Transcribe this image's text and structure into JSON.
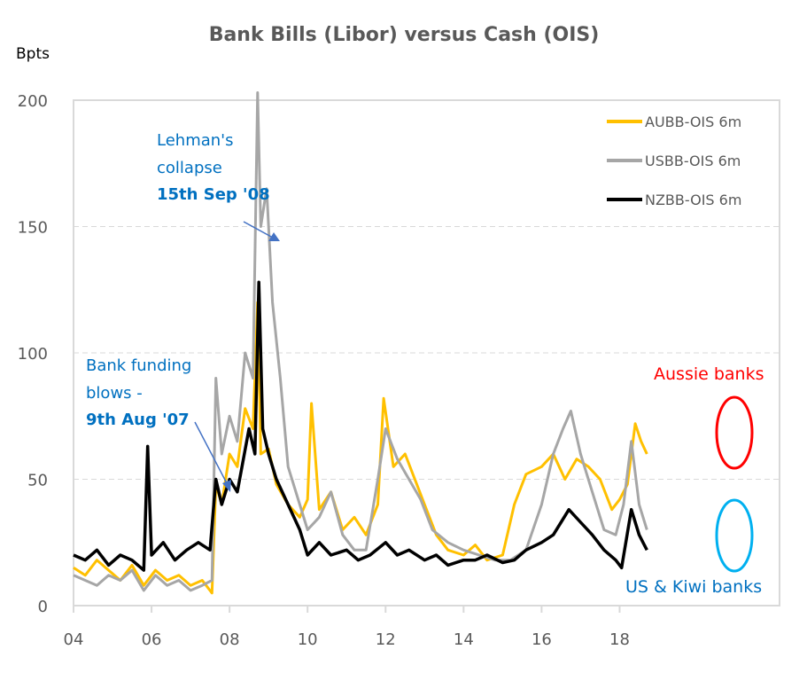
{
  "chart_data": {
    "type": "line",
    "title": "Bank Bills (Libor) versus Cash (OIS)",
    "ylabel": "Bpts",
    "xlabel": "",
    "xlim": [
      2004,
      2022.1
    ],
    "ylim": [
      0,
      200
    ],
    "x_tick_labels": [
      "04",
      "06",
      "08",
      "10",
      "12",
      "14",
      "16",
      "18"
    ],
    "x_ticks": [
      2004,
      2006,
      2008,
      2010,
      2012,
      2014,
      2016,
      2018
    ],
    "y_ticks": [
      0,
      50,
      100,
      150,
      200
    ],
    "grid": "horizontal dashed",
    "legend_position": "top-right",
    "series": [
      {
        "name": "AUBB-OIS 6m",
        "color": "#FFC000",
        "x": [
          2004,
          2004.3,
          2004.6,
          2004.9,
          2005.2,
          2005.5,
          2005.8,
          2006.1,
          2006.4,
          2006.7,
          2007,
          2007.3,
          2007.55,
          2007.65,
          2007.8,
          2008,
          2008.2,
          2008.4,
          2008.6,
          2008.72,
          2008.8,
          2009,
          2009.2,
          2009.5,
          2009.8,
          2010,
          2010.1,
          2010.3,
          2010.6,
          2010.9,
          2011.2,
          2011.5,
          2011.8,
          2011.95,
          2012.2,
          2012.5,
          2012.8,
          2013,
          2013.3,
          2013.6,
          2014,
          2014.3,
          2014.6,
          2015,
          2015.3,
          2015.6,
          2016,
          2016.3,
          2016.6,
          2016.9,
          2017.2,
          2017.5,
          2017.8,
          2018,
          2018.2,
          2018.4,
          2018.55,
          2018.7
        ],
        "y": [
          15,
          12,
          18,
          14,
          10,
          16,
          8,
          14,
          10,
          12,
          8,
          10,
          5,
          48,
          40,
          60,
          55,
          78,
          70,
          120,
          60,
          62,
          48,
          40,
          35,
          42,
          80,
          38,
          45,
          30,
          35,
          28,
          40,
          82,
          55,
          60,
          48,
          40,
          28,
          22,
          20,
          24,
          18,
          20,
          40,
          52,
          55,
          60,
          50,
          58,
          55,
          50,
          38,
          42,
          48,
          72,
          65,
          60
        ]
      },
      {
        "name": "USBB-OIS 6m",
        "color": "#A6A6A6",
        "x": [
          2004,
          2004.3,
          2004.6,
          2004.9,
          2005.2,
          2005.5,
          2005.8,
          2006.1,
          2006.4,
          2006.7,
          2007,
          2007.3,
          2007.55,
          2007.65,
          2007.8,
          2008,
          2008.2,
          2008.4,
          2008.6,
          2008.72,
          2008.8,
          2008.95,
          2009.1,
          2009.3,
          2009.5,
          2009.8,
          2010,
          2010.3,
          2010.6,
          2010.9,
          2011.2,
          2011.5,
          2011.8,
          2012,
          2012.3,
          2012.6,
          2012.9,
          2013.2,
          2013.6,
          2014,
          2014.4,
          2014.8,
          2015.2,
          2015.6,
          2016,
          2016.3,
          2016.55,
          2016.75,
          2017,
          2017.3,
          2017.6,
          2017.9,
          2018.1,
          2018.3,
          2018.5,
          2018.7
        ],
        "y": [
          12,
          10,
          8,
          12,
          10,
          14,
          6,
          12,
          8,
          10,
          6,
          8,
          10,
          90,
          60,
          75,
          65,
          100,
          90,
          205,
          150,
          165,
          120,
          90,
          55,
          40,
          30,
          35,
          45,
          28,
          22,
          22,
          50,
          70,
          58,
          50,
          42,
          30,
          25,
          22,
          20,
          18,
          18,
          22,
          40,
          60,
          70,
          77,
          60,
          45,
          30,
          28,
          40,
          65,
          40,
          30
        ]
      },
      {
        "name": "NZBB-OIS 6m",
        "color": "#000000",
        "x": [
          2004,
          2004.3,
          2004.6,
          2004.9,
          2005.2,
          2005.5,
          2005.8,
          2005.9,
          2006,
          2006.3,
          2006.6,
          2006.9,
          2007.2,
          2007.5,
          2007.65,
          2007.8,
          2008,
          2008.2,
          2008.5,
          2008.65,
          2008.75,
          2008.85,
          2009,
          2009.2,
          2009.5,
          2009.8,
          2010,
          2010.3,
          2010.6,
          2011,
          2011.3,
          2011.6,
          2012,
          2012.3,
          2012.6,
          2013,
          2013.3,
          2013.6,
          2014,
          2014.3,
          2014.6,
          2015,
          2015.3,
          2015.6,
          2016,
          2016.3,
          2016.7,
          2017,
          2017.3,
          2017.6,
          2017.9,
          2018.05,
          2018.3,
          2018.5,
          2018.6,
          2018.7
        ],
        "y": [
          20,
          18,
          22,
          16,
          20,
          18,
          14,
          63,
          20,
          25,
          18,
          22,
          25,
          22,
          50,
          40,
          50,
          45,
          70,
          60,
          128,
          70,
          60,
          50,
          40,
          30,
          20,
          25,
          20,
          22,
          18,
          20,
          25,
          20,
          22,
          18,
          20,
          16,
          18,
          18,
          20,
          17,
          18,
          22,
          25,
          28,
          38,
          33,
          28,
          22,
          18,
          15,
          38,
          28,
          25,
          22
        ]
      }
    ],
    "annotations": {
      "lehman_line1": "Lehman's",
      "lehman_line2": "collapse",
      "lehman_date": "15th Sep '08",
      "funding_line1": "Bank funding",
      "funding_line2": "blows -",
      "funding_date": "9th Aug '07",
      "aussie": "Aussie banks",
      "us_kiwi": "US & Kiwi banks",
      "annotation_color": "#0070C0",
      "aussie_color": "#FF0000",
      "circle_us_color": "#00B0F0"
    }
  }
}
